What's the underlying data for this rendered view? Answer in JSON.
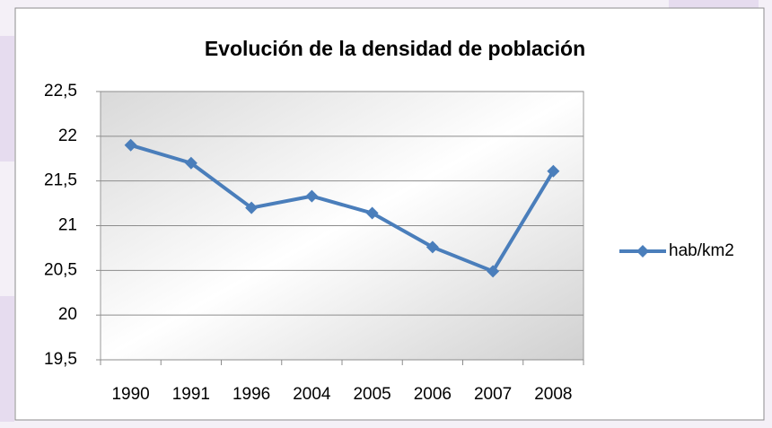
{
  "chart_data": {
    "type": "line",
    "title": "Evolución de la densidad de población",
    "categories": [
      "1990",
      "1991",
      "1996",
      "2004",
      "2005",
      "2006",
      "2007",
      "2008"
    ],
    "series": [
      {
        "name": "hab/km2",
        "color": "#4a7ebb",
        "values": [
          21.9,
          21.7,
          21.2,
          21.33,
          21.14,
          20.76,
          20.49,
          21.61
        ]
      }
    ],
    "ylim": [
      19.5,
      22.5
    ],
    "yticks": [
      {
        "value": 19.5,
        "label": "19,5"
      },
      20,
      {
        "value": 20.5,
        "label": "20,5"
      },
      21,
      {
        "value": 21.5,
        "label": "21,5"
      },
      22,
      {
        "value": 22.5,
        "label": "22,5"
      }
    ],
    "grid": true,
    "legend": "right"
  }
}
